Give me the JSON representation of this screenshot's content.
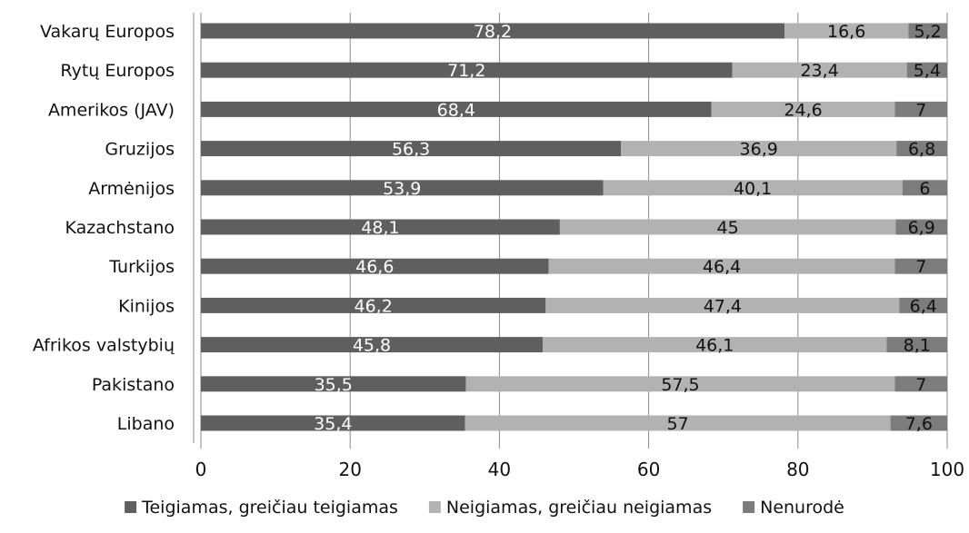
{
  "chart_data": {
    "type": "bar",
    "orientation": "horizontal",
    "stacked": true,
    "categories": [
      "Vakarų Europos",
      "Rytų Europos",
      "Amerikos (JAV)",
      "Gruzijos",
      "Armėnijos",
      "Kazachstano",
      "Turkijos",
      "Kinijos",
      "Afrikos valstybių",
      "Pakistano",
      "Libano"
    ],
    "series": [
      {
        "name": "Teigiamas, greičiau teigiamas",
        "color": "#5f5f5f",
        "label_color": "#ffffff",
        "values": [
          78.2,
          71.2,
          68.4,
          56.3,
          53.9,
          48.1,
          46.6,
          46.2,
          45.8,
          35.5,
          35.4
        ],
        "labels": [
          "78,2",
          "71,2",
          "68,4",
          "56,3",
          "53,9",
          "48,1",
          "46,6",
          "46,2",
          "45,8",
          "35,5",
          "35,4"
        ]
      },
      {
        "name": "Neigiamas, greičiau neigiamas",
        "color": "#b2b2b2",
        "label_color": "#111111",
        "values": [
          16.6,
          23.4,
          24.6,
          36.9,
          40.1,
          45,
          46.4,
          47.4,
          46.1,
          57.5,
          57
        ],
        "labels": [
          "16,6",
          "23,4",
          "24,6",
          "36,9",
          "40,1",
          "45",
          "46,4",
          "47,4",
          "46,1",
          "57,5",
          "57"
        ]
      },
      {
        "name": "Nenurodė",
        "color": "#7c7c7c",
        "label_color": "#111111",
        "values": [
          5.2,
          5.4,
          7,
          6.8,
          6,
          6.9,
          7,
          6.4,
          8.1,
          7,
          7.6
        ],
        "labels": [
          "5,2",
          "5,4",
          "7",
          "6,8",
          "6",
          "6,9",
          "7",
          "6,4",
          "8,1",
          "7",
          "7,6"
        ]
      }
    ],
    "xlim": [
      0,
      100
    ],
    "xticks": [
      0,
      20,
      40,
      60,
      80,
      100
    ],
    "xtick_labels": [
      "0",
      "20",
      "40",
      "60",
      "80",
      "100"
    ],
    "grid": true,
    "gridline_color": "#8a8a8a",
    "legend_position": "bottom",
    "title": "",
    "xlabel": "",
    "ylabel": ""
  }
}
